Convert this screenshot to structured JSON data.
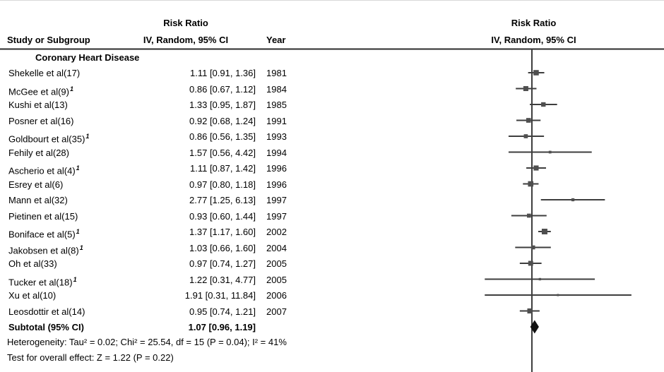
{
  "header": {
    "left": {
      "col1": "Study or Subgroup",
      "col2_line1": "Risk Ratio",
      "col2_line2": "IV, Random, 95% CI",
      "col3": "Year"
    },
    "right": {
      "line1": "Risk Ratio",
      "line2": "IV, Random, 95% CI"
    }
  },
  "subgroup": "Coronary Heart Disease",
  "chart_data": {
    "type": "forest",
    "effect_measure": "Risk Ratio",
    "model": "IV, Random, 95% CI",
    "x_scale": "log",
    "null_value": 1,
    "colors": {
      "ci_line": "#3e3e3e",
      "marker": "#4f4f4f",
      "diamond": "#111111",
      "rule": "#2b2b2b"
    },
    "studies": [
      {
        "label": "Shekelle et al(17)",
        "sup": "",
        "rr": 1.11,
        "lo": 0.91,
        "hi": 1.36,
        "ci_text": "1.11 [0.91, 1.36]",
        "year": "1981"
      },
      {
        "label": "McGee et al(9)",
        "sup": "1",
        "rr": 0.86,
        "lo": 0.67,
        "hi": 1.12,
        "ci_text": "0.86 [0.67, 1.12]",
        "year": "1984"
      },
      {
        "label": "Kushi et al(13)",
        "sup": "",
        "rr": 1.33,
        "lo": 0.95,
        "hi": 1.87,
        "ci_text": "1.33 [0.95, 1.87]",
        "year": "1985"
      },
      {
        "label": "Posner et al(16)",
        "sup": "",
        "rr": 0.92,
        "lo": 0.68,
        "hi": 1.24,
        "ci_text": "0.92 [0.68, 1.24]",
        "year": "1991"
      },
      {
        "label": "Goldbourt et al(35)",
        "sup": "1",
        "rr": 0.86,
        "lo": 0.56,
        "hi": 1.35,
        "ci_text": "0.86 [0.56, 1.35]",
        "year": "1993"
      },
      {
        "label": "Fehily et al(28)",
        "sup": "",
        "rr": 1.57,
        "lo": 0.56,
        "hi": 4.42,
        "ci_text": "1.57 [0.56, 4.42]",
        "year": "1994"
      },
      {
        "label": "Ascherio et al(4)",
        "sup": "1",
        "rr": 1.11,
        "lo": 0.87,
        "hi": 1.42,
        "ci_text": "1.11 [0.87, 1.42]",
        "year": "1996"
      },
      {
        "label": "Esrey et al(6)",
        "sup": "",
        "rr": 0.97,
        "lo": 0.8,
        "hi": 1.18,
        "ci_text": "0.97 [0.80, 1.18]",
        "year": "1996"
      },
      {
        "label": "Mann et al(32)",
        "sup": "",
        "rr": 2.77,
        "lo": 1.25,
        "hi": 6.13,
        "ci_text": "2.77 [1.25, 6.13]",
        "year": "1997"
      },
      {
        "label": "Pietinen et al(15)",
        "sup": "",
        "rr": 0.93,
        "lo": 0.6,
        "hi": 1.44,
        "ci_text": "0.93 [0.60, 1.44]",
        "year": "1997"
      },
      {
        "label": "Boniface et al(5)",
        "sup": "1",
        "rr": 1.37,
        "lo": 1.17,
        "hi": 1.6,
        "ci_text": "1.37 [1.17, 1.60]",
        "year": "2002"
      },
      {
        "label": "Jakobsen et al(8)",
        "sup": "1",
        "rr": 1.03,
        "lo": 0.66,
        "hi": 1.6,
        "ci_text": "1.03 [0.66, 1.60]",
        "year": "2004"
      },
      {
        "label": "Oh et al(33)",
        "sup": "",
        "rr": 0.97,
        "lo": 0.74,
        "hi": 1.27,
        "ci_text": "0.97 [0.74, 1.27]",
        "year": "2005"
      },
      {
        "label": "Tucker et al(18)",
        "sup": "1",
        "rr": 1.22,
        "lo": 0.31,
        "hi": 4.77,
        "ci_text": "1.22 [0.31, 4.77]",
        "year": "2005"
      },
      {
        "label": "Xu et al(10)",
        "sup": "",
        "rr": 1.91,
        "lo": 0.31,
        "hi": 11.84,
        "ci_text": "1.91 [0.31, 11.84]",
        "year": "2006"
      },
      {
        "label": "Leosdottir et al(14)",
        "sup": "",
        "rr": 0.95,
        "lo": 0.74,
        "hi": 1.21,
        "ci_text": "0.95 [0.74, 1.21]",
        "year": "2007"
      }
    ],
    "subtotal": {
      "label": "Subtotal (95% CI)",
      "rr": 1.07,
      "lo": 0.96,
      "hi": 1.19,
      "ci_text": "1.07 [0.96, 1.19]"
    }
  },
  "footer": {
    "heterogeneity": "Heterogeneity: Tau² = 0.02; Chi² = 25.54, df = 15 (P = 0.04); I² = 41%",
    "overall_effect": "Test for overall effect: Z = 1.22 (P = 0.22)"
  }
}
